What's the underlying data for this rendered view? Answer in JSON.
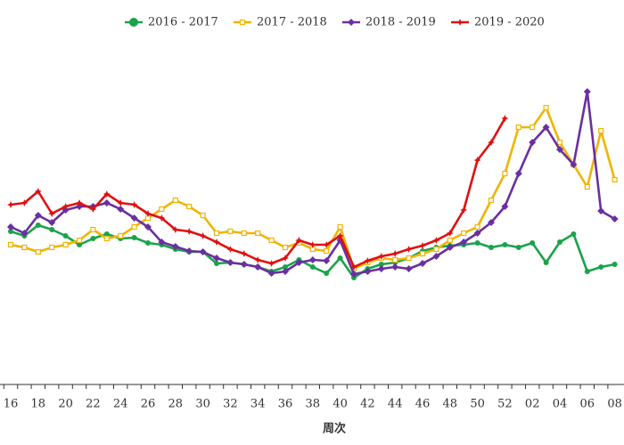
{
  "chart_data": {
    "type": "line",
    "x_label": "周次",
    "categories": [
      "16",
      null,
      "18",
      null,
      "20",
      null,
      "22",
      null,
      "24",
      null,
      "26",
      null,
      "28",
      null,
      "30",
      null,
      "32",
      null,
      "34",
      null,
      "36",
      null,
      "38",
      null,
      "40",
      null,
      "42",
      null,
      "44",
      null,
      "46",
      null,
      "48",
      null,
      "50",
      null,
      "52",
      null,
      "02",
      null,
      "04",
      null,
      "06",
      null,
      "08"
    ],
    "ylim": [
      0,
      100
    ],
    "series": [
      {
        "name": "2016 - 2017",
        "color": "#1aa34a",
        "marker": "circle",
        "values": [
          43,
          41.75,
          44.75,
          43.5,
          41.75,
          39.25,
          41,
          42.25,
          41,
          41.25,
          39.75,
          39.25,
          38,
          37.25,
          37.25,
          34,
          34.25,
          33.75,
          33,
          31.75,
          33,
          35,
          33,
          31.25,
          35.5,
          30,
          32.5,
          33.75,
          34.25,
          35.5,
          37.5,
          38.5,
          39,
          39.25,
          39.75,
          38.5,
          39.25,
          38.5,
          39.75,
          34.25,
          40,
          42.25,
          31.75,
          33,
          33.75
        ]
      },
      {
        "name": "2017 - 2018",
        "color": "#f0b400",
        "marker": "square",
        "values": [
          39.25,
          38.5,
          37.25,
          38.5,
          39.25,
          40.5,
          43.5,
          41,
          41.75,
          44.25,
          46.75,
          49.25,
          51.75,
          50,
          47.5,
          42.5,
          43,
          42.5,
          42.5,
          40.5,
          38.5,
          39.75,
          38,
          37.5,
          44.25,
          32.5,
          34.25,
          35.5,
          35,
          35.5,
          36.75,
          38,
          40.5,
          42.5,
          44.25,
          51.75,
          59.25,
          72.25,
          72.25,
          77.75,
          68,
          61.75,
          55.5,
          71.25,
          57.5
        ]
      },
      {
        "name": "2018 - 2019",
        "color": "#6a2fa0",
        "marker": "diamond",
        "values": [
          44.25,
          42.5,
          47.5,
          45.5,
          49,
          50,
          50,
          51,
          49.25,
          46.75,
          44.25,
          40,
          38.75,
          37.5,
          37.25,
          35.5,
          34.25,
          33.75,
          33,
          31.25,
          31.75,
          34.25,
          35,
          34.75,
          40.5,
          31,
          31.75,
          32.5,
          33,
          32.5,
          34,
          36,
          38.5,
          40,
          42.5,
          45.5,
          50,
          59.25,
          68,
          72.25,
          66,
          61.75,
          82.25,
          48.75,
          46.5
        ]
      },
      {
        "name": "2019 - 2020",
        "color": "#e01010",
        "marker": "star",
        "values": [
          50.5,
          51,
          54.25,
          48,
          50,
          51,
          49.25,
          53.5,
          51,
          50.5,
          48,
          46.75,
          43.5,
          43,
          41.75,
          40,
          38,
          36.75,
          35,
          34,
          35.5,
          40.5,
          39.25,
          39.25,
          41.75,
          33,
          34.75,
          36,
          36.75,
          38,
          39,
          40.5,
          42.5,
          49,
          63,
          68,
          74.75,
          null,
          null,
          null,
          null,
          null,
          null,
          null,
          null
        ]
      }
    ]
  }
}
